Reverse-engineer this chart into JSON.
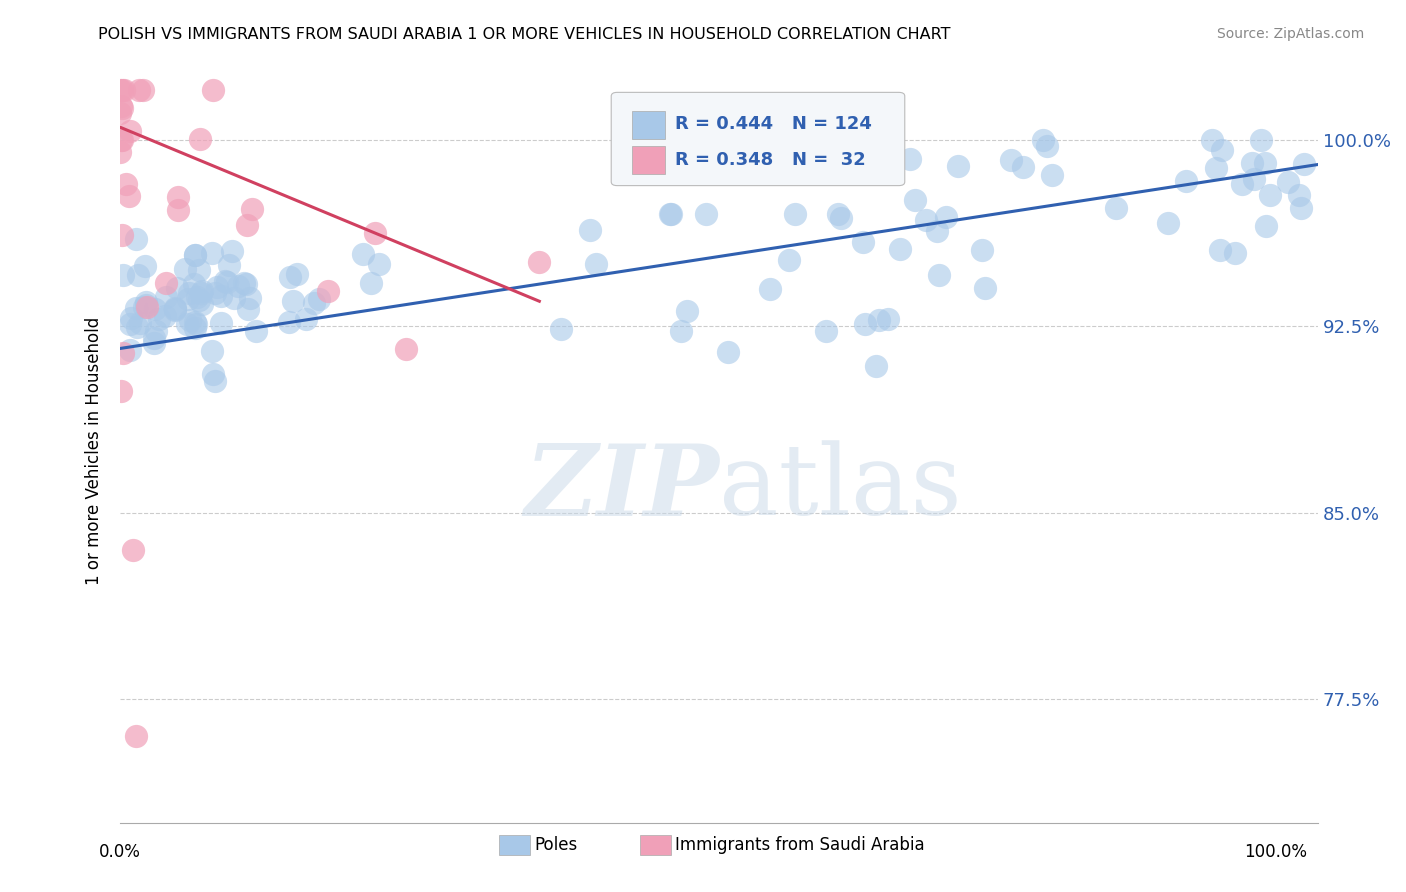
{
  "title": "POLISH VS IMMIGRANTS FROM SAUDI ARABIA 1 OR MORE VEHICLES IN HOUSEHOLD CORRELATION CHART",
  "source": "Source: ZipAtlas.com",
  "ylabel": "1 or more Vehicles in Household",
  "xmin": 0.0,
  "xmax": 1.0,
  "ymin": 0.725,
  "ymax": 1.025,
  "yticks": [
    0.775,
    0.85,
    0.925,
    1.0
  ],
  "ytick_labels": [
    "77.5%",
    "85.0%",
    "92.5%",
    "100.0%"
  ],
  "r_blue": 0.444,
  "n_blue": 124,
  "r_pink": 0.348,
  "n_pink": 32,
  "blue_color": "#a8c8e8",
  "pink_color": "#f0a0b8",
  "blue_line_color": "#3060b0",
  "pink_line_color": "#d04060",
  "watermark_color": "#c8d8e8",
  "blue_line_x0": 0.0,
  "blue_line_y0": 0.916,
  "blue_line_x1": 1.0,
  "blue_line_y1": 0.99,
  "pink_line_x0": 0.0,
  "pink_line_y0": 1.005,
  "pink_line_x1": 0.35,
  "pink_line_y1": 0.935
}
